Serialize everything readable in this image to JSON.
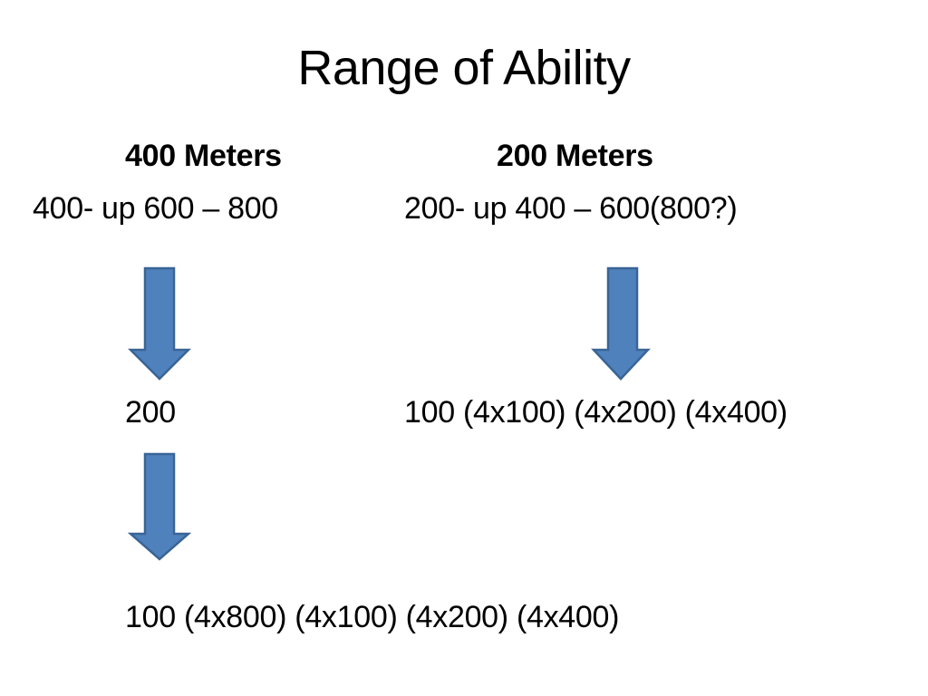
{
  "slide": {
    "title": "Range of Ability"
  },
  "columns": {
    "left": {
      "heading": "400 Meters",
      "range": "400- up 600 – 800",
      "step_1": "200",
      "step_2": "100 (4x800) (4x100) (4x200) (4x400)"
    },
    "right": {
      "heading": "200 Meters",
      "range": "200- up 400 – 600(800?)",
      "step_1": "100 (4x100) (4x200) (4x400)"
    }
  },
  "icons": {
    "arrow": "down-arrow-icon"
  },
  "colors": {
    "arrow_fill": "#4f81bd",
    "arrow_stroke": "#3a6496",
    "text": "#000000",
    "background": "#ffffff"
  }
}
